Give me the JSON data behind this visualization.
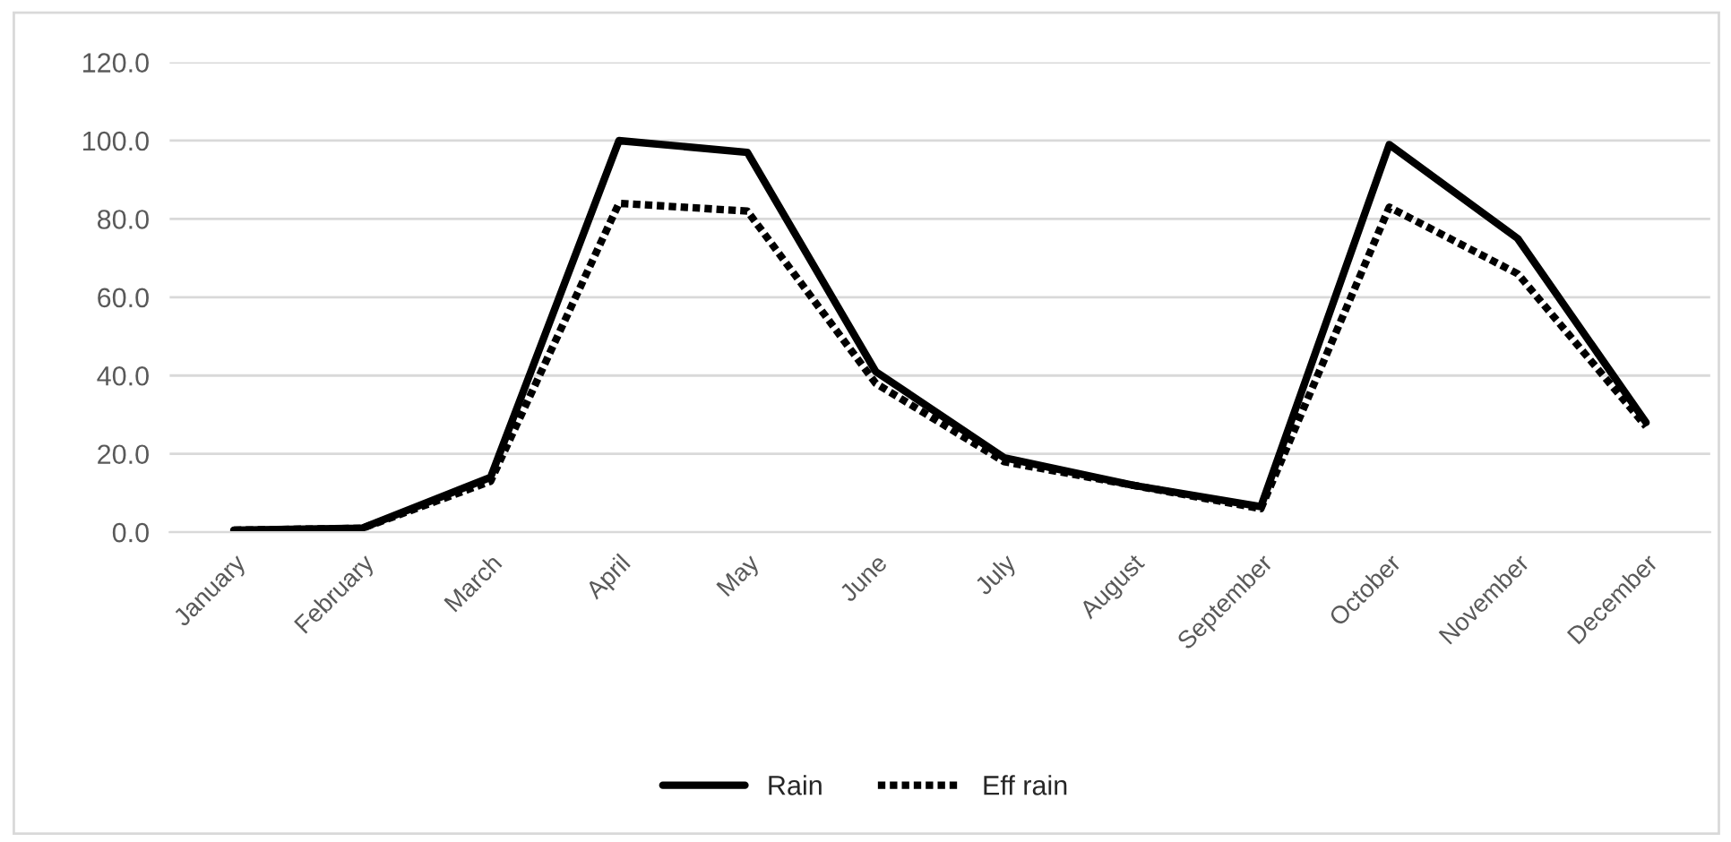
{
  "chart_data": {
    "type": "line",
    "categories": [
      "January",
      "February",
      "March",
      "April",
      "May",
      "June",
      "July",
      "August",
      "September",
      "October",
      "November",
      "December"
    ],
    "series": [
      {
        "name": "Rain",
        "color": "#000000",
        "line_style": "solid",
        "values": [
          0.5,
          1.0,
          14,
          100,
          97,
          41,
          19,
          12,
          6.5,
          99,
          75,
          28
        ]
      },
      {
        "name": "Eff rain",
        "color": "#000000",
        "line_style": "dotted",
        "values": [
          0.5,
          1.0,
          13,
          84,
          82,
          38,
          18,
          12,
          6,
          83,
          66,
          27
        ]
      }
    ],
    "ylim": [
      0,
      120
    ],
    "yticks": [
      {
        "value": 0,
        "label": "0.0"
      },
      {
        "value": 20,
        "label": "20.0"
      },
      {
        "value": 40,
        "label": "40.0"
      },
      {
        "value": 60,
        "label": "60.0"
      },
      {
        "value": 80,
        "label": "80.0"
      },
      {
        "value": 100,
        "label": "100.0"
      },
      {
        "value": 120,
        "label": "120.0"
      }
    ],
    "grid": "y",
    "legend": "bottom",
    "marker": "none"
  }
}
